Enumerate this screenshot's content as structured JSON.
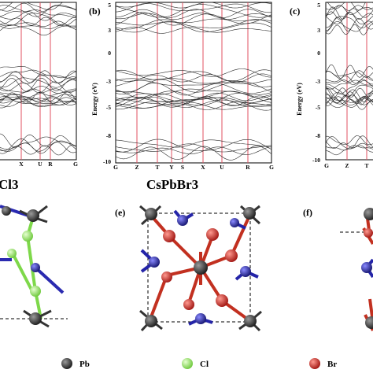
{
  "panels": {
    "a": {
      "partial_title": "Cl3",
      "xticks": [
        "X",
        "U",
        "R",
        "G"
      ]
    },
    "b": {
      "letter": "(b)",
      "ylabel": "Energy (eV)",
      "yticks": [
        "5",
        "3",
        "0",
        "-3",
        "-5",
        "-8",
        "-10"
      ],
      "xticks": [
        "G",
        "Z",
        "T",
        "Y",
        "S",
        "X",
        "U",
        "R",
        "G"
      ],
      "title": "CsPbBr3"
    },
    "c": {
      "letter": "(c)",
      "ylabel": "Energy (eV)",
      "yticks": [
        "5",
        "3",
        "0",
        "-3",
        "-5",
        "-8",
        "-10"
      ],
      "xticks": [
        "G",
        "Z",
        "T"
      ]
    },
    "e": {
      "letter": "(e)"
    },
    "f": {
      "letter": "(f)"
    }
  },
  "legend": [
    {
      "label": "Pb",
      "color": "#3a3a3a"
    },
    {
      "label": "Cl",
      "color": "#9cf06a"
    },
    {
      "label": "Br",
      "color": "#d42a22"
    }
  ],
  "colors": {
    "kpath_line": "#e05060",
    "band": "#2a2a2a",
    "pb": "#3a3a3a",
    "cl": "#9cf06a",
    "br": "#d42a22",
    "cs": "#2a2ab0"
  }
}
